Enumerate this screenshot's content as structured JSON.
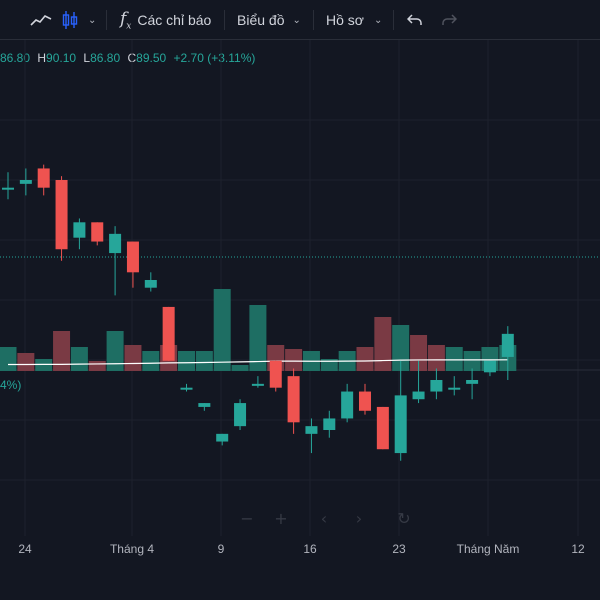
{
  "toolbar": {
    "indicators_label": "Các chỉ báo",
    "chart_label": "Biểu đồ",
    "profile_label": "Hồ sơ"
  },
  "ohlc": {
    "open_value": "86.80",
    "high_key": "H",
    "high_value": "90.10",
    "low_key": "L",
    "low_value": "86.80",
    "close_key": "C",
    "close_value": "89.50",
    "change": "+2.70 (+3.11%)"
  },
  "oscillator": {
    "label_fragment": "4%)"
  },
  "colors": {
    "up": "#26a69a",
    "down": "#ef5350",
    "volume_up": "#1e6e63",
    "volume_down": "#7a3a44",
    "ma_line": "#ffffff",
    "background": "#131722"
  },
  "chart_data": {
    "type": "candlestick",
    "x_ticks": [
      "24",
      "Tháng 4",
      "9",
      "16",
      "23",
      "Tháng Năm",
      "12"
    ],
    "candles": [
      {
        "o": 86.5,
        "h": 86.9,
        "l": 86.2,
        "c": 86.5,
        "dir": "up"
      },
      {
        "o": 86.6,
        "h": 87.0,
        "l": 86.3,
        "c": 86.7,
        "dir": "up"
      },
      {
        "o": 87.0,
        "h": 87.1,
        "l": 86.3,
        "c": 86.5,
        "dir": "down"
      },
      {
        "o": 86.7,
        "h": 86.8,
        "l": 84.6,
        "c": 84.9,
        "dir": "down"
      },
      {
        "o": 85.2,
        "h": 85.7,
        "l": 84.9,
        "c": 85.6,
        "dir": "up"
      },
      {
        "o": 85.6,
        "h": 85.6,
        "l": 85.0,
        "c": 85.1,
        "dir": "down"
      },
      {
        "o": 84.8,
        "h": 85.5,
        "l": 83.7,
        "c": 85.3,
        "dir": "up"
      },
      {
        "o": 85.1,
        "h": 85.1,
        "l": 83.9,
        "c": 84.3,
        "dir": "down"
      },
      {
        "o": 84.1,
        "h": 84.3,
        "l": 83.8,
        "c": 83.9,
        "dir": "up"
      },
      {
        "o": 83.4,
        "h": 83.4,
        "l": 82.0,
        "c": 82.0,
        "dir": "down"
      },
      {
        "o": 81.3,
        "h": 81.4,
        "l": 81.2,
        "c": 81.3,
        "dir": "up"
      },
      {
        "o": 80.9,
        "h": 80.9,
        "l": 80.7,
        "c": 80.8,
        "dir": "up"
      },
      {
        "o": 80.1,
        "h": 80.1,
        "l": 79.8,
        "c": 79.9,
        "dir": "up"
      },
      {
        "o": 80.3,
        "h": 81.0,
        "l": 80.2,
        "c": 80.9,
        "dir": "up"
      },
      {
        "o": 81.4,
        "h": 81.6,
        "l": 81.3,
        "c": 81.4,
        "dir": "up"
      },
      {
        "o": 82.0,
        "h": 82.0,
        "l": 81.2,
        "c": 81.3,
        "dir": "down"
      },
      {
        "o": 81.6,
        "h": 81.8,
        "l": 80.1,
        "c": 80.4,
        "dir": "down"
      },
      {
        "o": 80.1,
        "h": 80.5,
        "l": 79.6,
        "c": 80.3,
        "dir": "up"
      },
      {
        "o": 80.2,
        "h": 80.7,
        "l": 80.0,
        "c": 80.5,
        "dir": "up"
      },
      {
        "o": 80.5,
        "h": 81.4,
        "l": 80.4,
        "c": 81.2,
        "dir": "up"
      },
      {
        "o": 81.2,
        "h": 81.4,
        "l": 80.6,
        "c": 80.7,
        "dir": "down"
      },
      {
        "o": 80.8,
        "h": 80.8,
        "l": 79.7,
        "c": 79.7,
        "dir": "down"
      },
      {
        "o": 79.6,
        "h": 82.0,
        "l": 79.4,
        "c": 81.1,
        "dir": "up"
      },
      {
        "o": 81.0,
        "h": 82.0,
        "l": 80.9,
        "c": 81.2,
        "dir": "up"
      },
      {
        "o": 81.2,
        "h": 81.8,
        "l": 81.0,
        "c": 81.5,
        "dir": "up"
      },
      {
        "o": 81.3,
        "h": 81.6,
        "l": 81.1,
        "c": 81.3,
        "dir": "up"
      },
      {
        "o": 81.4,
        "h": 81.8,
        "l": 81.0,
        "c": 81.5,
        "dir": "up"
      },
      {
        "o": 81.7,
        "h": 82.0,
        "l": 81.6,
        "c": 82.0,
        "dir": "up"
      },
      {
        "o": 82.1,
        "h": 82.9,
        "l": 81.5,
        "c": 82.7,
        "dir": "up"
      }
    ],
    "volume": [
      {
        "v": 1.2,
        "dir": "up"
      },
      {
        "v": 0.9,
        "dir": "down"
      },
      {
        "v": 0.6,
        "dir": "up"
      },
      {
        "v": 2.0,
        "dir": "down"
      },
      {
        "v": 1.2,
        "dir": "up"
      },
      {
        "v": 0.5,
        "dir": "down"
      },
      {
        "v": 2.0,
        "dir": "up"
      },
      {
        "v": 1.3,
        "dir": "down"
      },
      {
        "v": 1.0,
        "dir": "up"
      },
      {
        "v": 1.3,
        "dir": "down"
      },
      {
        "v": 1.0,
        "dir": "up"
      },
      {
        "v": 1.0,
        "dir": "up"
      },
      {
        "v": 4.1,
        "dir": "up"
      },
      {
        "v": 0.3,
        "dir": "up"
      },
      {
        "v": 3.3,
        "dir": "up"
      },
      {
        "v": 1.3,
        "dir": "down"
      },
      {
        "v": 1.1,
        "dir": "down"
      },
      {
        "v": 1.0,
        "dir": "up"
      },
      {
        "v": 0.6,
        "dir": "up"
      },
      {
        "v": 1.0,
        "dir": "up"
      },
      {
        "v": 1.2,
        "dir": "down"
      },
      {
        "v": 2.7,
        "dir": "down"
      },
      {
        "v": 2.3,
        "dir": "up"
      },
      {
        "v": 1.8,
        "dir": "down"
      },
      {
        "v": 1.3,
        "dir": "down"
      },
      {
        "v": 1.2,
        "dir": "up"
      },
      {
        "v": 1.0,
        "dir": "up"
      },
      {
        "v": 1.2,
        "dir": "up"
      },
      {
        "v": 1.3,
        "dir": "up"
      }
    ],
    "volume_ma": [
      0.85,
      0.85,
      0.86,
      0.87,
      0.9,
      0.93,
      0.96,
      1.0,
      1.04,
      1.1,
      1.12,
      1.15,
      1.2,
      1.25,
      1.3,
      1.36,
      1.36,
      1.35,
      1.35,
      1.37,
      1.38,
      1.45,
      1.52,
      1.55,
      1.56,
      1.56,
      1.56,
      1.56,
      1.57
    ]
  }
}
